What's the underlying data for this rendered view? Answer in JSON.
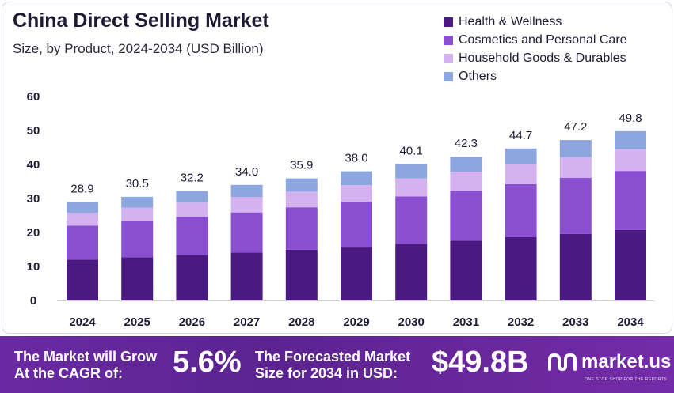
{
  "header": {
    "title": "China Direct Selling Market",
    "subtitle": "Size, by Product, 2024-2034 (USD Billion)"
  },
  "legend": [
    {
      "label": "Health & Wellness",
      "color": "#4a1a82"
    },
    {
      "label": "Cosmetics and Personal Care",
      "color": "#8a4fd0"
    },
    {
      "label": "Household Goods & Durables",
      "color": "#d4b2f0"
    },
    {
      "label": "Others",
      "color": "#8ea6e0"
    }
  ],
  "chart_data": {
    "type": "bar",
    "stacked": true,
    "categories": [
      "2024",
      "2025",
      "2026",
      "2027",
      "2028",
      "2029",
      "2030",
      "2031",
      "2032",
      "2033",
      "2034"
    ],
    "series": [
      {
        "name": "Health & Wellness",
        "color": "#4a1a82",
        "values": [
          12.0,
          12.7,
          13.4,
          14.1,
          14.9,
          15.8,
          16.7,
          17.6,
          18.6,
          19.6,
          20.7
        ]
      },
      {
        "name": "Cosmetics and Personal Care",
        "color": "#8a4fd0",
        "values": [
          10.0,
          10.6,
          11.2,
          11.8,
          12.5,
          13.2,
          13.9,
          14.7,
          15.6,
          16.5,
          17.4
        ]
      },
      {
        "name": "Household Goods & Durables",
        "color": "#d4b2f0",
        "values": [
          3.8,
          4.0,
          4.2,
          4.5,
          4.6,
          4.9,
          5.3,
          5.6,
          5.8,
          6.1,
          6.4
        ]
      },
      {
        "name": "Others",
        "color": "#8ea6e0",
        "values": [
          3.1,
          3.2,
          3.4,
          3.6,
          3.9,
          4.1,
          4.2,
          4.4,
          4.7,
          5.0,
          5.3
        ]
      }
    ],
    "totals": [
      "28.9",
      "30.5",
      "32.2",
      "34.0",
      "35.9",
      "38.0",
      "40.1",
      "42.3",
      "44.7",
      "47.2",
      "49.8"
    ],
    "yticks": [
      "0",
      "10",
      "20",
      "30",
      "40",
      "50",
      "60"
    ],
    "ylim": [
      0,
      60
    ],
    "grid": false
  },
  "footer": {
    "cagr_label_line1": "The Market will Grow",
    "cagr_label_line2": "At the CAGR of:",
    "cagr_value": "5.6%",
    "forecast_label_line1": "The Forecasted Market",
    "forecast_label_line2": "Size for 2034 in USD:",
    "forecast_value": "$49.8B",
    "brand": "market.us",
    "tagline": "ONE STOP SHOP FOR THE REPORTS"
  }
}
